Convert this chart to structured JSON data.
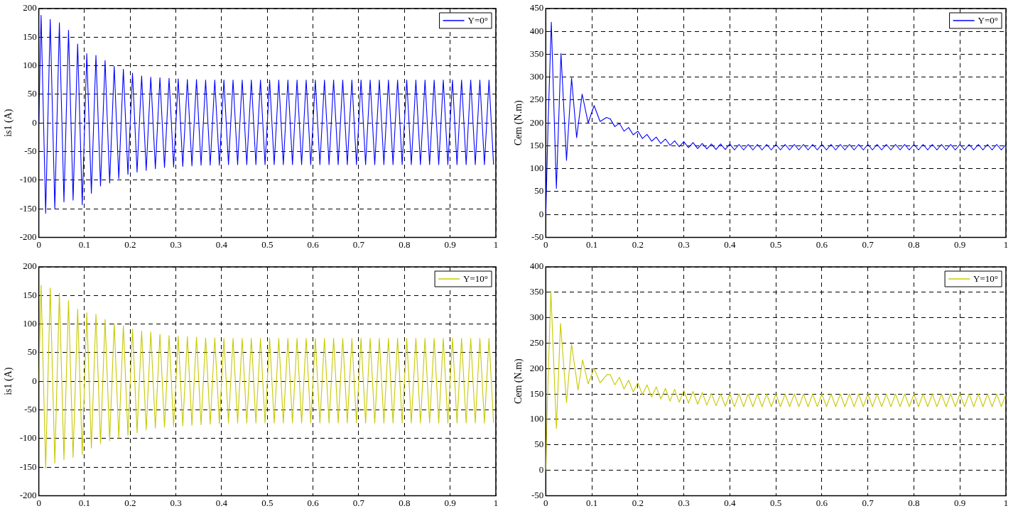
{
  "chart_data": [
    {
      "type": "line",
      "ylabel": "is1 (A)",
      "xlim": [
        0,
        1
      ],
      "xticks": [
        0,
        0.1,
        0.2,
        0.3,
        0.4,
        0.5,
        0.6,
        0.7,
        0.8,
        0.9,
        1
      ],
      "ylim": [
        -200,
        200
      ],
      "yticks": [
        -200,
        -150,
        -100,
        -50,
        0,
        50,
        100,
        150,
        200
      ],
      "grid": true,
      "legend": "top right",
      "marker": "none",
      "line_style": "solid",
      "x": [
        0,
        0.005,
        0.015,
        0.025,
        0.035,
        0.045,
        0.055,
        0.065,
        0.075,
        0.085,
        0.095,
        0.105,
        0.115,
        0.125,
        0.135,
        0.145,
        0.155,
        0.165,
        0.175,
        0.185,
        0.195,
        0.205,
        0.215,
        0.225,
        0.235,
        0.245,
        0.255,
        0.265,
        0.275,
        0.285,
        0.295,
        0.305,
        0.315,
        0.325,
        0.335,
        0.345,
        0.355,
        0.365,
        0.375,
        0.385,
        0.395,
        0.405,
        0.415,
        0.425,
        0.435,
        0.445,
        0.455,
        0.465,
        0.475,
        0.485,
        0.495,
        0.505,
        0.515,
        0.525,
        0.535,
        0.545,
        0.555,
        0.565,
        0.575,
        0.585,
        0.595,
        0.605,
        0.615,
        0.625,
        0.635,
        0.645,
        0.655,
        0.665,
        0.675,
        0.685,
        0.695,
        0.705,
        0.715,
        0.725,
        0.735,
        0.745,
        0.755,
        0.765,
        0.775,
        0.785,
        0.795,
        0.805,
        0.815,
        0.825,
        0.835,
        0.845,
        0.855,
        0.865,
        0.875,
        0.885,
        0.895,
        0.905,
        0.915,
        0.925,
        0.935,
        0.945,
        0.955,
        0.965,
        0.975,
        0.985,
        0.995
      ],
      "series": [
        {
          "name": "Y=0°",
          "color": "#0000ff",
          "values": [
            0,
            188,
            -158,
            181,
            -150,
            175,
            -138,
            162,
            -135,
            138,
            -143,
            121,
            -123,
            118,
            -110,
            109,
            -105,
            99,
            -97,
            94,
            -90,
            87,
            -86,
            82,
            -83,
            80,
            -80,
            79,
            -78,
            78,
            -77,
            77,
            -76,
            76,
            -75,
            76,
            -74,
            75,
            -74,
            75,
            -74,
            75,
            -73,
            75,
            -73,
            75,
            -73,
            75,
            -73,
            75,
            -73,
            75,
            -73,
            75,
            -73,
            75,
            -73,
            75,
            -73,
            75,
            -73,
            75,
            -73,
            75,
            -73,
            75,
            -73,
            75,
            -73,
            75,
            -73,
            75,
            -73,
            75,
            -73,
            75,
            -73,
            75,
            -73,
            75,
            -73,
            75,
            -73,
            75,
            -73,
            75,
            -73,
            75,
            -73,
            75,
            -73,
            75,
            -73,
            75,
            -73,
            75,
            -73,
            75,
            -73,
            75,
            -73
          ]
        }
      ]
    },
    {
      "type": "line",
      "ylabel": "Cem (N.m)",
      "xlim": [
        0,
        1
      ],
      "xticks": [
        0,
        0.1,
        0.2,
        0.3,
        0.4,
        0.5,
        0.6,
        0.7,
        0.8,
        0.9,
        1
      ],
      "ylim": [
        -50,
        450
      ],
      "yticks": [
        -50,
        0,
        50,
        100,
        150,
        200,
        250,
        300,
        350,
        400,
        450
      ],
      "grid": true,
      "legend": "top right",
      "marker": "none",
      "line_style": "solid",
      "x": [
        0,
        0.005,
        0.012,
        0.023,
        0.033,
        0.045,
        0.056,
        0.067,
        0.079,
        0.092,
        0.105,
        0.118,
        0.132,
        0.14,
        0.15,
        0.16,
        0.17,
        0.18,
        0.19,
        0.2,
        0.21,
        0.22,
        0.23,
        0.24,
        0.25,
        0.26,
        0.27,
        0.28,
        0.29,
        0.3,
        0.31,
        0.32,
        0.33,
        0.34,
        0.35,
        0.36,
        0.37,
        0.38,
        0.39,
        0.4,
        0.41,
        0.42,
        0.43,
        0.44,
        0.45,
        0.46,
        0.47,
        0.48,
        0.49,
        0.5,
        0.51,
        0.52,
        0.53,
        0.54,
        0.55,
        0.56,
        0.57,
        0.58,
        0.59,
        0.6,
        0.61,
        0.62,
        0.63,
        0.64,
        0.65,
        0.66,
        0.67,
        0.68,
        0.69,
        0.7,
        0.71,
        0.72,
        0.73,
        0.74,
        0.75,
        0.76,
        0.77,
        0.78,
        0.79,
        0.8,
        0.81,
        0.82,
        0.83,
        0.84,
        0.85,
        0.86,
        0.87,
        0.88,
        0.89,
        0.9,
        0.91,
        0.92,
        0.93,
        0.94,
        0.95,
        0.96,
        0.97,
        0.98,
        0.99,
        1
      ],
      "series": [
        {
          "name": "Y=0°",
          "color": "#0000ff",
          "values": [
            0,
            200,
            420,
            57,
            352,
            118,
            298,
            168,
            263,
            200,
            238,
            203,
            212,
            209,
            192,
            199,
            182,
            190,
            174,
            182,
            166,
            175,
            160,
            169,
            155,
            165,
            151,
            161,
            148,
            159,
            146,
            157,
            144,
            155,
            143,
            154,
            142,
            154,
            142,
            154,
            141,
            153,
            141,
            153,
            141,
            153,
            141,
            153,
            141,
            153,
            141,
            153,
            141,
            153,
            141,
            153,
            141,
            153,
            141,
            153,
            141,
            153,
            141,
            153,
            141,
            153,
            141,
            153,
            141,
            153,
            141,
            153,
            141,
            153,
            141,
            153,
            141,
            153,
            141,
            153,
            141,
            153,
            141,
            153,
            141,
            153,
            141,
            153,
            141,
            153,
            141,
            153,
            141,
            153,
            141,
            153,
            141,
            153,
            141,
            153
          ]
        }
      ]
    },
    {
      "type": "line",
      "ylabel": "is1 (A)",
      "xlim": [
        0,
        1
      ],
      "xticks": [
        0,
        0.1,
        0.2,
        0.3,
        0.4,
        0.5,
        0.6,
        0.7,
        0.8,
        0.9,
        1
      ],
      "ylim": [
        -200,
        200
      ],
      "yticks": [
        -200,
        -150,
        -100,
        -50,
        0,
        50,
        100,
        150,
        200
      ],
      "grid": true,
      "legend": "top right",
      "marker": "none",
      "line_style": "solid",
      "x": [
        0,
        0.005,
        0.015,
        0.025,
        0.035,
        0.045,
        0.055,
        0.065,
        0.075,
        0.085,
        0.095,
        0.105,
        0.115,
        0.125,
        0.135,
        0.145,
        0.155,
        0.165,
        0.175,
        0.185,
        0.195,
        0.205,
        0.215,
        0.225,
        0.235,
        0.245,
        0.255,
        0.265,
        0.275,
        0.285,
        0.295,
        0.305,
        0.315,
        0.325,
        0.335,
        0.345,
        0.355,
        0.365,
        0.375,
        0.385,
        0.395,
        0.405,
        0.415,
        0.425,
        0.435,
        0.445,
        0.455,
        0.465,
        0.475,
        0.485,
        0.495,
        0.505,
        0.515,
        0.525,
        0.535,
        0.545,
        0.555,
        0.565,
        0.575,
        0.585,
        0.595,
        0.605,
        0.615,
        0.625,
        0.635,
        0.645,
        0.655,
        0.665,
        0.675,
        0.685,
        0.695,
        0.705,
        0.715,
        0.725,
        0.735,
        0.745,
        0.755,
        0.765,
        0.775,
        0.785,
        0.795,
        0.805,
        0.815,
        0.825,
        0.835,
        0.845,
        0.855,
        0.865,
        0.875,
        0.885,
        0.895,
        0.905,
        0.915,
        0.925,
        0.935,
        0.945,
        0.955,
        0.965,
        0.975,
        0.985,
        0.995
      ],
      "series": [
        {
          "name": "Y=10°",
          "color": "#c8c800",
          "values": [
            0,
            168,
            -152,
            163,
            -143,
            154,
            -137,
            141,
            -133,
            126,
            -128,
            120,
            -117,
            117,
            -109,
            108,
            -104,
            101,
            -99,
            97,
            -95,
            91,
            -90,
            88,
            -85,
            86,
            -82,
            82,
            -80,
            80,
            -79,
            79,
            -78,
            78,
            -77,
            77,
            -76,
            76,
            -75,
            76,
            -74,
            75,
            -73,
            75,
            -73,
            75,
            -73,
            75,
            -73,
            75,
            -73,
            75,
            -73,
            75,
            -73,
            75,
            -73,
            75,
            -73,
            75,
            -73,
            75,
            -73,
            75,
            -73,
            75,
            -73,
            75,
            -73,
            75,
            -73,
            75,
            -73,
            75,
            -73,
            75,
            -73,
            75,
            -73,
            75,
            -73,
            75,
            -73,
            75,
            -73,
            75,
            -73,
            75,
            -73,
            75,
            -73,
            75,
            -73,
            75,
            -73,
            75,
            -73,
            75,
            -73,
            75,
            -73
          ]
        }
      ]
    },
    {
      "type": "line",
      "ylabel": "Cem (N.m)",
      "xlim": [
        0,
        1
      ],
      "xticks": [
        0,
        0.1,
        0.2,
        0.3,
        0.4,
        0.5,
        0.6,
        0.7,
        0.8,
        0.9,
        1
      ],
      "ylim": [
        -50,
        400
      ],
      "yticks": [
        -50,
        0,
        50,
        100,
        150,
        200,
        250,
        300,
        350,
        400
      ],
      "grid": true,
      "legend": "top right",
      "marker": "none",
      "line_style": "solid",
      "x": [
        0,
        0.004,
        0.011,
        0.023,
        0.032,
        0.045,
        0.056,
        0.07,
        0.08,
        0.092,
        0.105,
        0.118,
        0.133,
        0.14,
        0.15,
        0.16,
        0.17,
        0.18,
        0.19,
        0.2,
        0.21,
        0.22,
        0.23,
        0.24,
        0.25,
        0.26,
        0.27,
        0.28,
        0.29,
        0.3,
        0.31,
        0.32,
        0.33,
        0.34,
        0.35,
        0.36,
        0.37,
        0.38,
        0.39,
        0.4,
        0.41,
        0.42,
        0.43,
        0.44,
        0.45,
        0.46,
        0.47,
        0.48,
        0.49,
        0.5,
        0.51,
        0.52,
        0.53,
        0.54,
        0.55,
        0.56,
        0.57,
        0.58,
        0.59,
        0.6,
        0.61,
        0.62,
        0.63,
        0.64,
        0.65,
        0.66,
        0.67,
        0.68,
        0.69,
        0.7,
        0.71,
        0.72,
        0.73,
        0.74,
        0.75,
        0.76,
        0.77,
        0.78,
        0.79,
        0.8,
        0.81,
        0.82,
        0.83,
        0.84,
        0.85,
        0.86,
        0.87,
        0.88,
        0.89,
        0.9,
        0.91,
        0.92,
        0.93,
        0.94,
        0.95,
        0.96,
        0.97,
        0.98,
        0.99,
        1
      ],
      "series": [
        {
          "name": "Y=10°",
          "color": "#c8c800",
          "values": [
            0,
            150,
            352,
            82,
            289,
            133,
            248,
            158,
            217,
            170,
            200,
            172,
            188,
            188,
            168,
            183,
            160,
            177,
            154,
            172,
            149,
            168,
            144,
            164,
            140,
            161,
            136,
            159,
            134,
            157,
            132,
            155,
            130,
            153,
            128,
            151,
            127,
            150,
            126,
            150,
            125,
            150,
            125,
            150,
            125,
            150,
            125,
            150,
            125,
            150,
            125,
            150,
            125,
            150,
            125,
            150,
            125,
            150,
            125,
            150,
            125,
            150,
            125,
            150,
            125,
            150,
            125,
            150,
            125,
            150,
            125,
            150,
            125,
            150,
            125,
            150,
            125,
            150,
            125,
            150,
            125,
            150,
            125,
            150,
            125,
            150,
            125,
            150,
            125,
            150,
            125,
            150,
            125,
            150,
            125,
            150,
            125,
            150,
            125,
            150
          ]
        }
      ]
    }
  ]
}
